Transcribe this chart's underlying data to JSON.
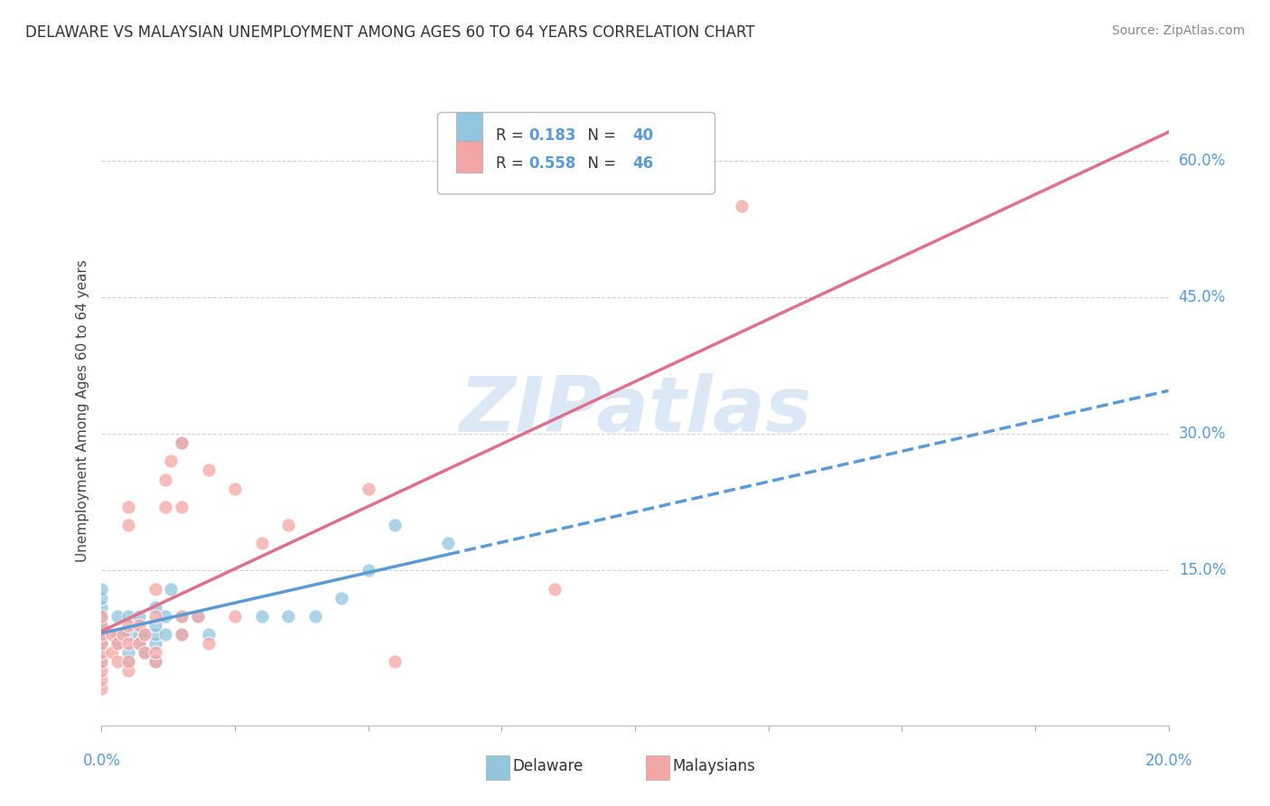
{
  "title": "DELAWARE VS MALAYSIAN UNEMPLOYMENT AMONG AGES 60 TO 64 YEARS CORRELATION CHART",
  "source": "Source: ZipAtlas.com",
  "ylabel": "Unemployment Among Ages 60 to 64 years",
  "ytick_labels": [
    "15.0%",
    "30.0%",
    "45.0%",
    "60.0%"
  ],
  "ytick_values": [
    0.15,
    0.3,
    0.45,
    0.6
  ],
  "xtick_left": "0.0%",
  "xtick_right": "20.0%",
  "xlim": [
    0.0,
    0.2
  ],
  "ylim": [
    -0.02,
    0.67
  ],
  "delaware_R": 0.183,
  "delaware_N": 40,
  "malaysian_R": 0.558,
  "malaysian_N": 46,
  "delaware_color": "#92c5de",
  "malaysian_color": "#f4a6a6",
  "delaware_line_color": "#5b9bd5",
  "malaysian_line_color": "#e07090",
  "watermark_color": "#dce8f5",
  "background_color": "#ffffff",
  "grid_color": "#d0d0d0",
  "delaware_x": [
    0.0,
    0.0,
    0.0,
    0.0,
    0.0,
    0.0,
    0.0,
    0.0,
    0.003,
    0.003,
    0.003,
    0.005,
    0.005,
    0.005,
    0.005,
    0.007,
    0.007,
    0.007,
    0.008,
    0.008,
    0.01,
    0.01,
    0.01,
    0.01,
    0.01,
    0.012,
    0.012,
    0.013,
    0.015,
    0.015,
    0.015,
    0.018,
    0.02,
    0.03,
    0.035,
    0.04,
    0.045,
    0.05,
    0.055,
    0.065
  ],
  "delaware_y": [
    0.05,
    0.07,
    0.08,
    0.09,
    0.1,
    0.11,
    0.12,
    0.13,
    0.07,
    0.08,
    0.1,
    0.05,
    0.06,
    0.08,
    0.1,
    0.07,
    0.08,
    0.1,
    0.06,
    0.08,
    0.05,
    0.07,
    0.08,
    0.09,
    0.11,
    0.08,
    0.1,
    0.13,
    0.08,
    0.1,
    0.29,
    0.1,
    0.08,
    0.1,
    0.1,
    0.1,
    0.12,
    0.15,
    0.2,
    0.18
  ],
  "malaysian_x": [
    0.0,
    0.0,
    0.0,
    0.0,
    0.0,
    0.0,
    0.0,
    0.0,
    0.0,
    0.002,
    0.002,
    0.003,
    0.003,
    0.004,
    0.005,
    0.005,
    0.005,
    0.005,
    0.005,
    0.005,
    0.007,
    0.007,
    0.008,
    0.008,
    0.01,
    0.01,
    0.01,
    0.01,
    0.012,
    0.012,
    0.013,
    0.015,
    0.015,
    0.015,
    0.015,
    0.018,
    0.02,
    0.02,
    0.025,
    0.025,
    0.03,
    0.035,
    0.05,
    0.055,
    0.085,
    0.12
  ],
  "malaysian_y": [
    0.02,
    0.03,
    0.04,
    0.05,
    0.06,
    0.07,
    0.08,
    0.09,
    0.1,
    0.06,
    0.08,
    0.05,
    0.07,
    0.08,
    0.04,
    0.05,
    0.07,
    0.09,
    0.2,
    0.22,
    0.07,
    0.09,
    0.06,
    0.08,
    0.05,
    0.06,
    0.1,
    0.13,
    0.22,
    0.25,
    0.27,
    0.08,
    0.1,
    0.22,
    0.29,
    0.1,
    0.07,
    0.26,
    0.1,
    0.24,
    0.18,
    0.2,
    0.24,
    0.05,
    0.13,
    0.55
  ]
}
